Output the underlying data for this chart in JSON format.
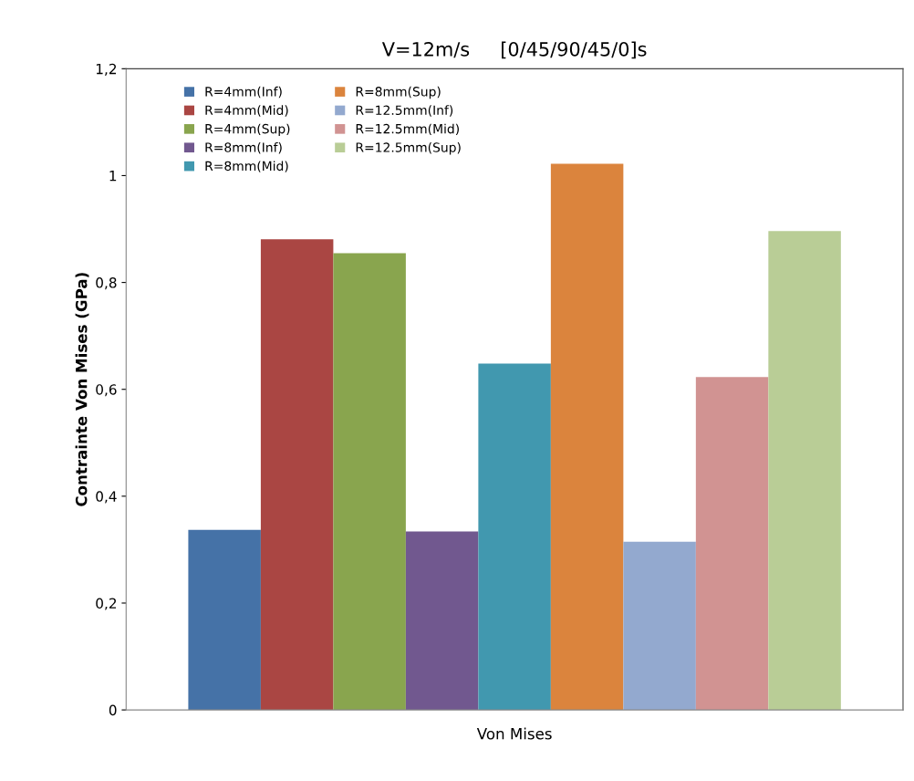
{
  "chart_data": {
    "type": "bar",
    "title": "V=12m/s     [0/45/90/45/0]s",
    "ylabel": "Contrainte Von Mises (GPa)",
    "categories": [
      "Von Mises"
    ],
    "series": [
      {
        "name": "R=4mm(Inf)",
        "color": "#4572a7",
        "values": [
          0.337
        ]
      },
      {
        "name": "R=4mm(Mid)",
        "color": "#aa4643",
        "values": [
          0.881
        ]
      },
      {
        "name": "R=4mm(Sup)",
        "color": "#89a54e",
        "values": [
          0.855
        ]
      },
      {
        "name": "R=8mm(Inf)",
        "color": "#71588f",
        "values": [
          0.334
        ]
      },
      {
        "name": "R=8mm(Mid)",
        "color": "#4198af",
        "values": [
          0.648
        ]
      },
      {
        "name": "R=8mm(Sup)",
        "color": "#db843d",
        "values": [
          1.022
        ]
      },
      {
        "name": "R=12.5mm(Inf)",
        "color": "#93a9cf",
        "values": [
          0.315
        ]
      },
      {
        "name": "R=12.5mm(Mid)",
        "color": "#d19392",
        "values": [
          0.623
        ]
      },
      {
        "name": "R=12.5mm(Sup)",
        "color": "#b9cd96",
        "values": [
          0.896
        ]
      }
    ],
    "ylim": [
      0,
      1.2
    ],
    "yticks": [
      {
        "value": 0,
        "label": "0"
      },
      {
        "value": 0.2,
        "label": "0,2"
      },
      {
        "value": 0.4,
        "label": "0,4"
      },
      {
        "value": 0.6,
        "label": "0,6"
      },
      {
        "value": 0.8,
        "label": "0,8"
      },
      {
        "value": 1,
        "label": "1"
      },
      {
        "value": 1.2,
        "label": "1,2"
      }
    ],
    "legend": "top left",
    "grid": false
  }
}
